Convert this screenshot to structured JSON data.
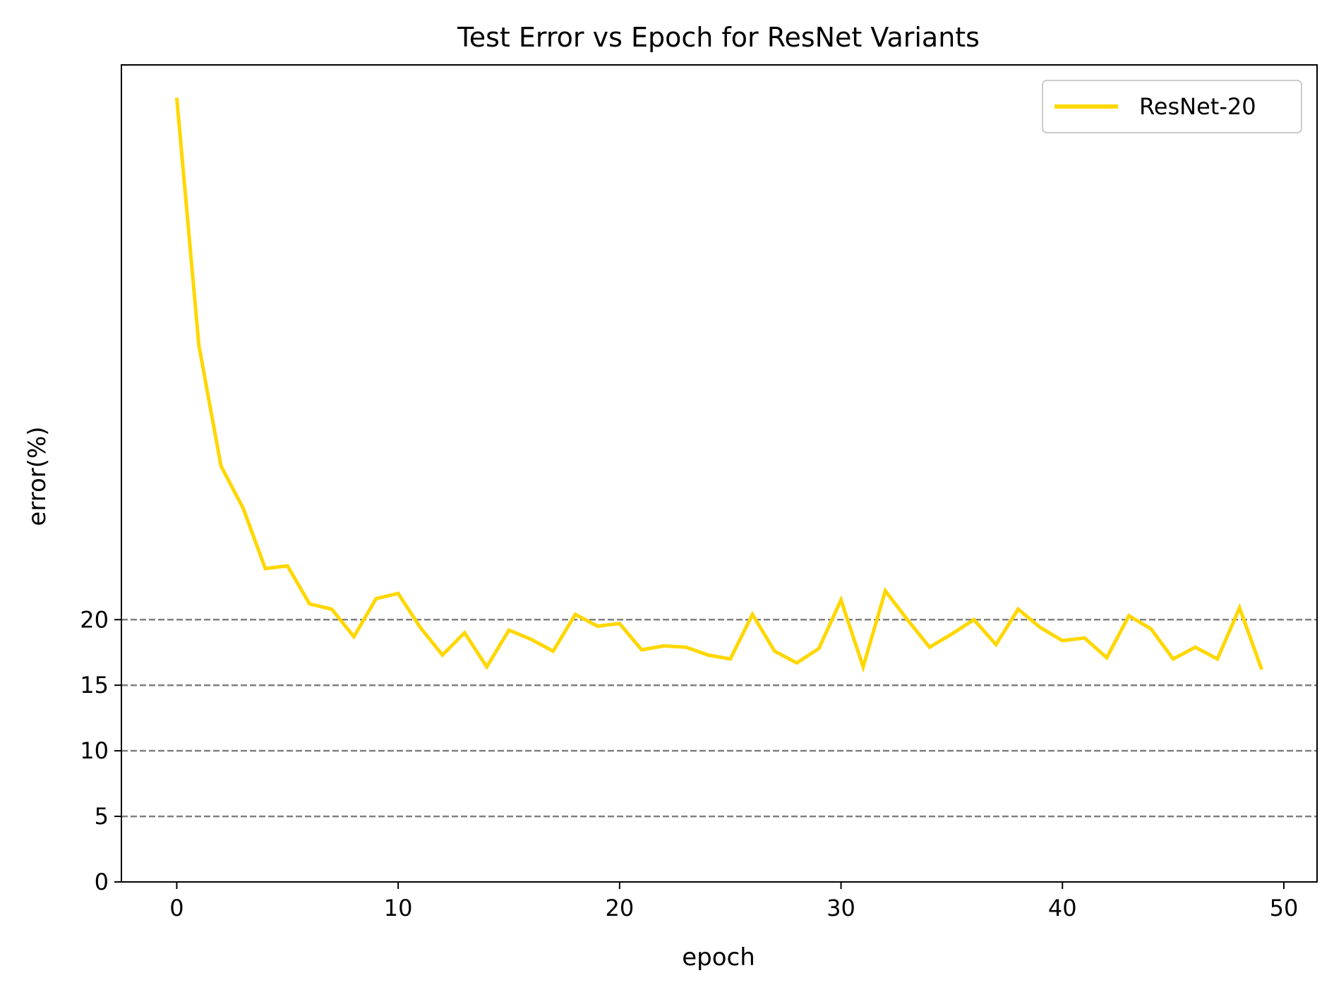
{
  "chart_data": {
    "type": "line",
    "title": "Test Error vs Epoch for ResNet Variants",
    "xlabel": "epoch",
    "ylabel": "error(%)",
    "xlim": [
      -2.5,
      51.5
    ],
    "ylim": [
      0,
      62.3
    ],
    "xticks": [
      0,
      10,
      20,
      30,
      40,
      50
    ],
    "yticks": [
      0,
      5,
      10,
      15,
      20
    ],
    "reference_lines": {
      "y": [
        5,
        10,
        15,
        20
      ],
      "style": "dashed",
      "color": "#808080"
    },
    "legend": {
      "position": "top-right"
    },
    "colors": {
      "series": "#FFD700",
      "reference": "#808080",
      "axes": "#000000"
    },
    "series": [
      {
        "name": "ResNet-20",
        "x": [
          0,
          1,
          2,
          3,
          4,
          5,
          6,
          7,
          8,
          9,
          10,
          11,
          12,
          13,
          14,
          15,
          16,
          17,
          18,
          19,
          20,
          21,
          22,
          23,
          24,
          25,
          26,
          27,
          28,
          29,
          30,
          31,
          32,
          33,
          34,
          35,
          36,
          37,
          38,
          39,
          40,
          41,
          42,
          43,
          44,
          45,
          46,
          47,
          48,
          49
        ],
        "values": [
          59.8,
          40.9,
          31.7,
          28.5,
          23.9,
          24.1,
          21.2,
          20.8,
          18.7,
          21.6,
          22.0,
          19.4,
          17.3,
          19.0,
          16.4,
          19.2,
          18.5,
          17.6,
          20.4,
          19.5,
          19.7,
          17.7,
          18.0,
          17.9,
          17.3,
          17.0,
          20.4,
          17.6,
          16.7,
          17.8,
          21.5,
          16.4,
          22.2,
          20.0,
          17.9,
          18.9,
          20.0,
          18.1,
          20.8,
          19.4,
          18.4,
          18.6,
          17.1,
          20.3,
          19.3,
          17.0,
          17.9,
          17.0,
          20.9,
          16.2
        ]
      }
    ]
  }
}
